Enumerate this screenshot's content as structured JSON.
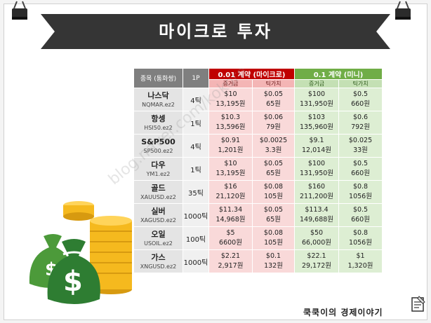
{
  "banner": {
    "title": "마이크로 투자"
  },
  "table": {
    "headers": {
      "ticker": "종목 (통화쌍)",
      "point": "1P",
      "micro": "0.01 계약 (마이크로)",
      "mini": "0.1 계약 (미니)",
      "margin": "증거금",
      "tick_value": "틱가치"
    },
    "rows": [
      {
        "name": "나스닥",
        "code": "NQMAR.ez2",
        "point": "4틱",
        "micro_margin": [
          "$10",
          "13,195원"
        ],
        "micro_tick": [
          "$0.05",
          "65원"
        ],
        "mini_margin": [
          "$100",
          "131,950원"
        ],
        "mini_tick": [
          "$0.5",
          "660원"
        ]
      },
      {
        "name": "항셍",
        "code": "HSI50.ez2",
        "point": "1틱",
        "micro_margin": [
          "$10.3",
          "13,596원"
        ],
        "micro_tick": [
          "$0.06",
          "79원"
        ],
        "mini_margin": [
          "$103",
          "135,960원"
        ],
        "mini_tick": [
          "$0.6",
          "792원"
        ]
      },
      {
        "name": "S&P500",
        "code": "SP500.ez2",
        "point": "4틱",
        "micro_margin": [
          "$0.91",
          "1,201원"
        ],
        "micro_tick": [
          "$0.0025",
          "3.3원"
        ],
        "mini_margin": [
          "$9.1",
          "12,014원"
        ],
        "mini_tick": [
          "$0.025",
          "33원"
        ]
      },
      {
        "name": "다우",
        "code": "YM1.ez2",
        "point": "1틱",
        "micro_margin": [
          "$10",
          "13,195원"
        ],
        "micro_tick": [
          "$0.05",
          "65원"
        ],
        "mini_margin": [
          "$100",
          "131,950원"
        ],
        "mini_tick": [
          "$0.5",
          "660원"
        ]
      },
      {
        "name": "골드",
        "code": "XAUUSD.ez2",
        "point": "35틱",
        "micro_margin": [
          "$16",
          "21,120원"
        ],
        "micro_tick": [
          "$0.08",
          "105원"
        ],
        "mini_margin": [
          "$160",
          "211,200원"
        ],
        "mini_tick": [
          "$0.8",
          "1056원"
        ]
      },
      {
        "name": "실버",
        "code": "XAGUSD.ez2",
        "point": "1000틱",
        "micro_margin": [
          "$11.34",
          "14,968원"
        ],
        "micro_tick": [
          "$0.05",
          "65원"
        ],
        "mini_margin": [
          "$113.4",
          "149,688원"
        ],
        "mini_tick": [
          "$0.5",
          "660원"
        ]
      },
      {
        "name": "오일",
        "code": "USOIL.ez2",
        "point": "100틱",
        "micro_margin": [
          "$5",
          "6600원"
        ],
        "micro_tick": [
          "$0.08",
          "105원"
        ],
        "mini_margin": [
          "$50",
          "66,000원"
        ],
        "mini_tick": [
          "$0.8",
          "1056원"
        ]
      },
      {
        "name": "가스",
        "code": "XNGUSD.ez2",
        "point": "1000틱",
        "micro_margin": [
          "$2.21",
          "2,917원"
        ],
        "micro_tick": [
          "$0.1",
          "132원"
        ],
        "mini_margin": [
          "$22.1",
          "29,172원"
        ],
        "mini_tick": [
          "$1",
          "1,320원"
        ]
      }
    ]
  },
  "watermark": "blog.naver.com/kokoro",
  "footer": {
    "text": "쿡쿡이의 경제이야기"
  },
  "colors": {
    "banner": "#353535",
    "micro_header": "#c00000",
    "mini_header": "#70ad47",
    "money_green": "#2e7d32",
    "coin_gold": "#f5b91e"
  },
  "icons": {
    "clip": "binder-clip-icon",
    "money": "money-bag-icon",
    "coins": "coin-stack-icon",
    "paper": "clipboard-icon"
  }
}
